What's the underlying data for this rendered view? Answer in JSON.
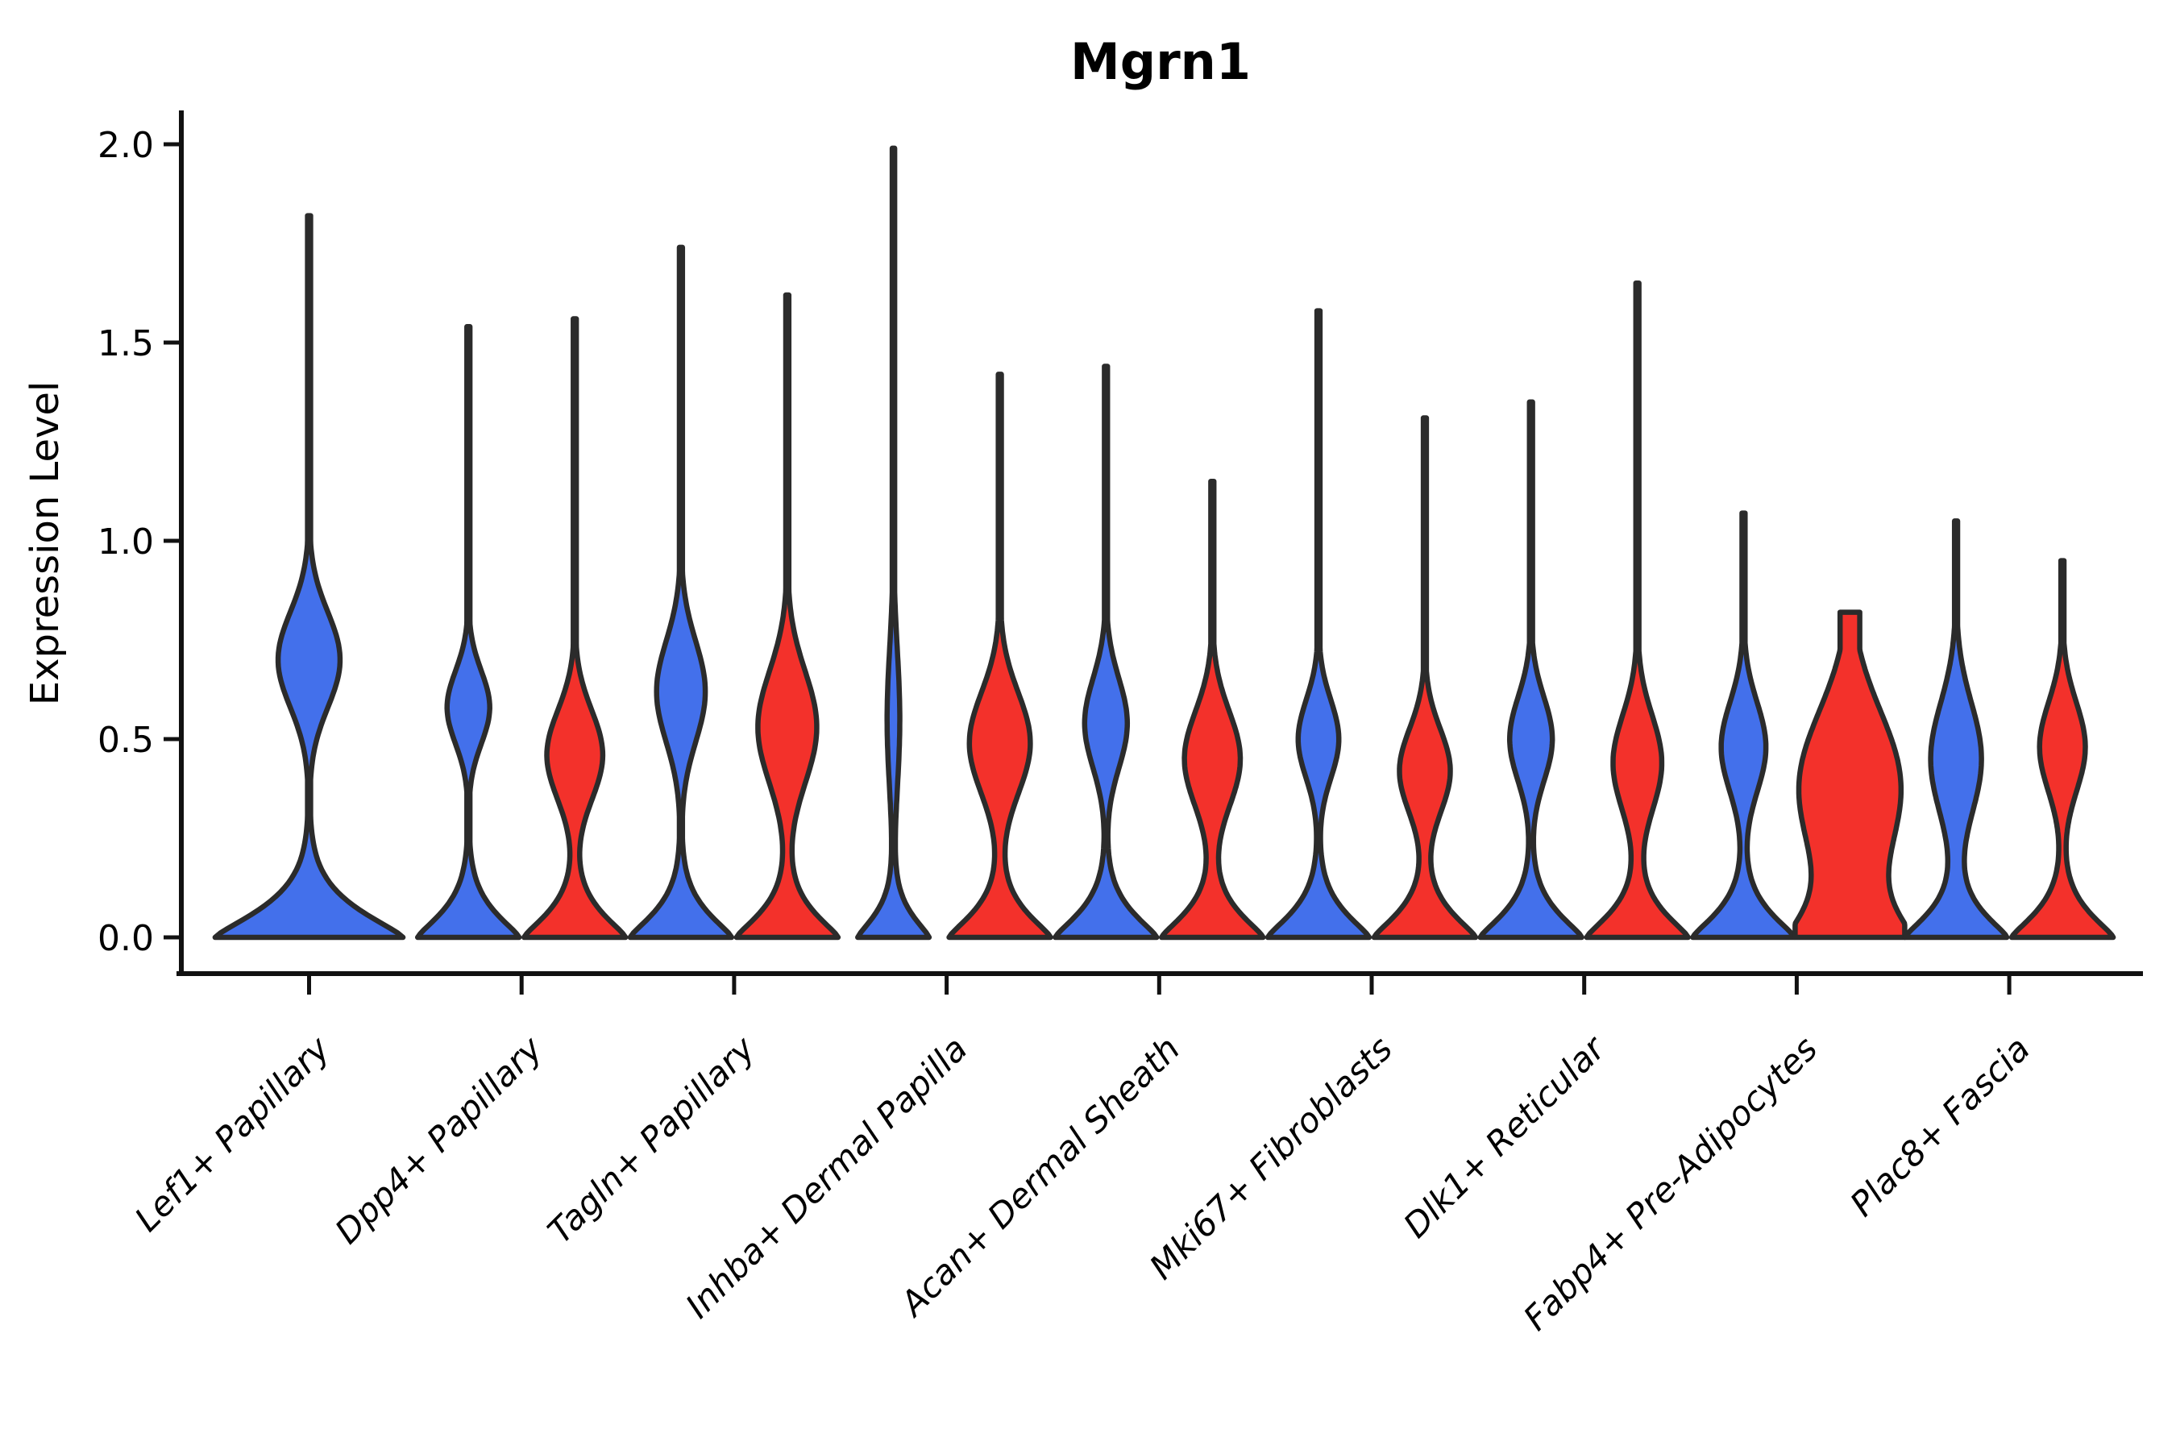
{
  "chart_data": {
    "type": "violin",
    "title": "Mgrn1",
    "ylabel": "Expression Level",
    "xlabel": "",
    "ylim": [
      -0.09,
      2.08
    ],
    "yticks": [
      0.0,
      0.5,
      1.0,
      1.5,
      2.0
    ],
    "ytick_labels": [
      "0.0",
      "0.5",
      "1.0",
      "1.5",
      "2.0"
    ],
    "grid": false,
    "legend": "none",
    "categories": [
      "Lef1+ Papillary",
      "Dpp4+ Papillary",
      "Tagln+ Papillary",
      "Inhba+ Dermal Papilla",
      "Acan+ Dermal Sheath",
      "Mki67+ Fibroblasts",
      "Dlk1+ Reticular",
      "Fabp4+ Pre-Adipocytes",
      "Plac8+ Fascia"
    ],
    "colors": {
      "blue_fill": "#4370EB",
      "red_fill": "#F3312B",
      "outline": "#2B2B2B",
      "axis": "#111111",
      "background": "#FFFFFF"
    },
    "violins": [
      {
        "cat": 0,
        "side": "center",
        "color": "blue",
        "max": 1.82,
        "hw": 1.85,
        "base_w": 1.0,
        "base_sigma": 0.1,
        "bulge_c": 0.7,
        "bulge_w": 0.33,
        "bulge_s": 0.17,
        "tail": 0.016
      },
      {
        "cat": 1,
        "side": "left",
        "color": "blue",
        "max": 1.54,
        "bulge_c": 0.58,
        "bulge_w": 0.42,
        "bulge_s": 0.13
      },
      {
        "cat": 1,
        "side": "right",
        "color": "red",
        "max": 1.56,
        "bulge_c": 0.46,
        "bulge_w": 0.55,
        "bulge_s": 0.16
      },
      {
        "cat": 2,
        "side": "left",
        "color": "blue",
        "max": 1.74,
        "bulge_c": 0.62,
        "bulge_w": 0.48,
        "bulge_s": 0.18
      },
      {
        "cat": 2,
        "side": "right",
        "color": "red",
        "max": 1.62,
        "bulge_c": 0.53,
        "bulge_w": 0.58,
        "bulge_s": 0.2
      },
      {
        "cat": 3,
        "side": "left",
        "color": "blue",
        "max": 1.99,
        "hw": 0.78,
        "base_w": 0.9,
        "base_sigma": 0.08,
        "bulge_c": 0.55,
        "bulge_w": 0.16,
        "bulge_s": 0.25
      },
      {
        "cat": 3,
        "side": "right",
        "color": "red",
        "max": 1.42,
        "bulge_c": 0.49,
        "bulge_w": 0.6,
        "bulge_s": 0.18
      },
      {
        "cat": 4,
        "side": "left",
        "color": "blue",
        "max": 1.44,
        "bulge_c": 0.54,
        "bulge_w": 0.42,
        "bulge_s": 0.16
      },
      {
        "cat": 4,
        "side": "right",
        "color": "red",
        "max": 1.15,
        "bulge_c": 0.45,
        "bulge_w": 0.55,
        "bulge_s": 0.17
      },
      {
        "cat": 5,
        "side": "left",
        "color": "blue",
        "max": 1.58,
        "bulge_c": 0.5,
        "bulge_w": 0.4,
        "bulge_s": 0.14
      },
      {
        "cat": 5,
        "side": "right",
        "color": "red",
        "max": 1.31,
        "bulge_c": 0.42,
        "bulge_w": 0.5,
        "bulge_s": 0.15
      },
      {
        "cat": 6,
        "side": "left",
        "color": "blue",
        "max": 1.35,
        "bulge_c": 0.5,
        "bulge_w": 0.42,
        "bulge_s": 0.15
      },
      {
        "cat": 6,
        "side": "right",
        "color": "red",
        "max": 1.65,
        "bulge_c": 0.44,
        "bulge_w": 0.48,
        "bulge_s": 0.17
      },
      {
        "cat": 7,
        "side": "left",
        "color": "blue",
        "max": 1.07,
        "bulge_c": 0.48,
        "bulge_w": 0.44,
        "bulge_s": 0.16
      },
      {
        "cat": 7,
        "side": "right",
        "color": "red",
        "max": 0.82,
        "hw": 1.08,
        "base_sigma": 0.12,
        "bulge_c": 0.38,
        "bulge_w": 0.92,
        "bulge_s": 0.27,
        "tail": 0.18
      },
      {
        "cat": 8,
        "side": "left",
        "color": "blue",
        "max": 1.05,
        "bulge_c": 0.45,
        "bulge_w": 0.5,
        "bulge_s": 0.2
      },
      {
        "cat": 8,
        "side": "right",
        "color": "red",
        "max": 0.95,
        "bulge_c": 0.48,
        "bulge_w": 0.45,
        "bulge_s": 0.16
      }
    ]
  }
}
